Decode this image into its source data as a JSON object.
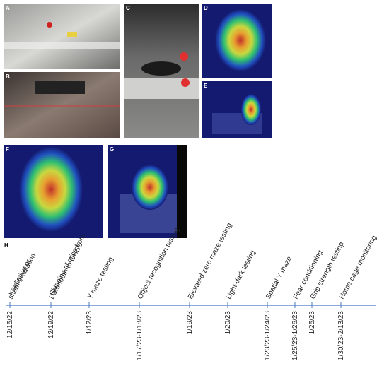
{
  "panels": [
    "A",
    "B",
    "C",
    "D",
    "E",
    "F",
    "G",
    "H"
  ],
  "events": [
    {
      "date": "12/15/22",
      "label": [
        "Irradiation or",
        "sham-irradiation"
      ]
    },
    {
      "date": "12/19/22",
      "label": [
        "Shipping of mice from",
        "Dartmouth to OHSU"
      ]
    },
    {
      "date": "1/12/23",
      "label": [
        "Y maze testing"
      ]
    },
    {
      "date": "1/17/23-1/18/23",
      "label": [
        "Object recognition testing"
      ]
    },
    {
      "date": "1/19/23",
      "label": [
        "Elevated  zero maze testing"
      ]
    },
    {
      "date": "1/20/23",
      "label": [
        "Light-dark testing"
      ]
    },
    {
      "date": "1/23/23-1/24/23",
      "label": [
        "Spatial Y maze"
      ]
    },
    {
      "date": "1/25/23-1/26/23",
      "label": [
        "Fear conditioning"
      ]
    },
    {
      "date": "1/25/23",
      "label": [
        "Grip strength testing"
      ]
    },
    {
      "date": "1/30/23-2/13/23",
      "label": [
        "Home cage monitoring"
      ]
    }
  ]
}
